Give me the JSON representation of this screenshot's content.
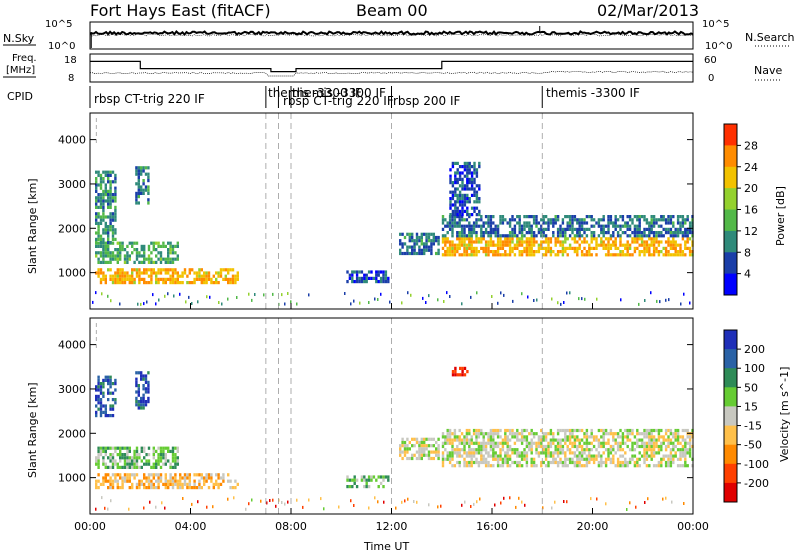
{
  "header": {
    "station": "Fort Hays East (fitACF)",
    "beam": "Beam 00",
    "date": "02/Mar/2013"
  },
  "noise_panel": {
    "left_label": "N.Sky",
    "left_ticks": [
      "10^5",
      "10^0"
    ],
    "right_label": "N.Search",
    "right_ticks": [
      "10^5",
      "10^0"
    ]
  },
  "freq_panel": {
    "left_label_line1": "Freq.",
    "left_label_line2": "[MHz]",
    "left_ticks": [
      "18",
      "8"
    ],
    "right_label": "Nave",
    "right_ticks": [
      "60",
      "0"
    ]
  },
  "cpid": {
    "label": "CPID",
    "segments": [
      {
        "text": "rbsp CT-trig 220 IF",
        "t": 0.1
      },
      {
        "text": "themis -3300 IF",
        "t": 7.05
      },
      {
        "text": "themis -3300 IF",
        "t": 7.6
      },
      {
        "text": "rbsp CT-trig 220 IF",
        "t": 7.6
      },
      {
        "text": "rbsp 200 IF",
        "t": 12.0
      },
      {
        "text": "themis -3300 IF",
        "t": 18.1
      }
    ],
    "dividers_hours": [
      7.0,
      7.5,
      8.0,
      12.0,
      18.0
    ]
  },
  "power_panel": {
    "ylabel": "Slant Range [km]",
    "yticks": [
      1000,
      2000,
      3000,
      4000
    ],
    "colorbar_label": "Power [dB]",
    "colorbar_ticks": [
      "28",
      "24",
      "20",
      "16",
      "12",
      "8",
      "4"
    ],
    "colors": [
      "#0000ff",
      "#1a3ea8",
      "#2f8a7a",
      "#52b848",
      "#94d12e",
      "#f2c200",
      "#ff8c00",
      "#ff3000"
    ]
  },
  "velocity_panel": {
    "ylabel": "Slant Range [km]",
    "yticks": [
      1000,
      2000,
      3000,
      4000
    ],
    "colorbar_label": "Velocity [m s^-1]",
    "colorbar_ticks": [
      "200",
      "100",
      "50",
      "15",
      "-15",
      "-50",
      "-100",
      "-200"
    ],
    "colors": [
      "#1f2fb8",
      "#2a62a6",
      "#2e8b57",
      "#66cc33",
      "#c8c8c0",
      "#ffc04a",
      "#ff8a00",
      "#ff4000",
      "#e00000"
    ]
  },
  "time_axis": {
    "xlabel": "Time UT",
    "ticks": [
      "00:00",
      "04:00",
      "08:00",
      "12:00",
      "16:00",
      "20:00",
      "00:00"
    ]
  },
  "chart_data": {
    "type": "heatmap",
    "title": "Fort Hays East (fitACF)",
    "xlabel": "Time UT",
    "ylabel": "Slant Range [km]",
    "xlim": [
      0,
      24
    ],
    "ylim": [
      180,
      4600
    ],
    "series": [
      {
        "name": "Power [dB]",
        "clim": [
          0,
          30
        ],
        "regions": [
          {
            "t0": 0.2,
            "t1": 5.9,
            "r0": 780,
            "r1": 1100,
            "value": 22
          },
          {
            "t0": 0.2,
            "t1": 3.5,
            "r0": 1200,
            "r1": 1700,
            "value": 12
          },
          {
            "t0": 0.2,
            "t1": 1.0,
            "r0": 1700,
            "r1": 3300,
            "value": 10
          },
          {
            "t0": 1.8,
            "t1": 2.3,
            "r0": 2600,
            "r1": 3400,
            "value": 8
          },
          {
            "t0": 10.2,
            "t1": 11.9,
            "r0": 800,
            "r1": 1050,
            "value": 6
          },
          {
            "t0": 12.3,
            "t1": 13.9,
            "r0": 1400,
            "r1": 1900,
            "value": 8
          },
          {
            "t0": 14.0,
            "t1": 24.0,
            "r0": 1400,
            "r1": 1800,
            "value": 22
          },
          {
            "t0": 14.0,
            "t1": 24.0,
            "r0": 1800,
            "r1": 2300,
            "value": 8
          },
          {
            "t0": 14.3,
            "t1": 15.5,
            "r0": 2300,
            "r1": 3500,
            "value": 6
          }
        ]
      },
      {
        "name": "Velocity [m s^-1]",
        "clim": [
          -200,
          200
        ],
        "regions": [
          {
            "t0": 0.2,
            "t1": 5.9,
            "r0": 780,
            "r1": 1100,
            "value": -50
          },
          {
            "t0": 0.2,
            "t1": 3.5,
            "r0": 1200,
            "r1": 1700,
            "value": 50
          },
          {
            "t0": 0.2,
            "t1": 1.0,
            "r0": 2400,
            "r1": 3300,
            "value": 150
          },
          {
            "t0": 1.8,
            "t1": 2.3,
            "r0": 2600,
            "r1": 3400,
            "value": 150
          },
          {
            "t0": 10.2,
            "t1": 11.9,
            "r0": 800,
            "r1": 1050,
            "value": 50
          },
          {
            "t0": 12.3,
            "t1": 13.9,
            "r0": 1400,
            "r1": 1900,
            "value": 0
          },
          {
            "t0": 14.0,
            "t1": 24.0,
            "r0": 1300,
            "r1": 2100,
            "value": 0
          },
          {
            "t0": 14.4,
            "t1": 15.0,
            "r0": 3300,
            "r1": 3500,
            "value": -150
          }
        ]
      }
    ]
  }
}
